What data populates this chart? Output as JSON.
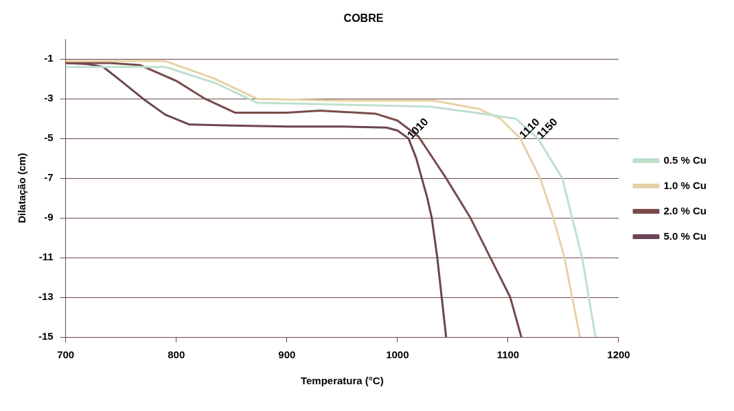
{
  "chart_data": {
    "type": "line",
    "title": "COBRE",
    "xlabel": "Temperatura (°C)",
    "ylabel": "Dilatação (cm)",
    "xlim": [
      700,
      1200
    ],
    "xticks": [
      700,
      800,
      900,
      1000,
      1100,
      1200
    ],
    "ylim": [
      -15,
      0
    ],
    "yticks": [
      -1,
      -3,
      -5,
      -7,
      -9,
      -11,
      -13,
      -15
    ],
    "grid": "y",
    "legend": "right",
    "marker": "none",
    "line_style": "solid",
    "series": [
      {
        "name": "0.5 % Cu",
        "color": "#bfe0cc",
        "x": [
          700,
          790,
          835,
          873,
          950,
          1030,
          1070,
          1107,
          1127,
          1149,
          1158,
          1167,
          1173,
          1179
        ],
        "values": [
          -1.4,
          -1.4,
          -2.2,
          -3.2,
          -3.3,
          -3.4,
          -3.7,
          -4,
          -5,
          -7,
          -9,
          -11,
          -13,
          -15
        ]
      },
      {
        "name": "1.0 % Cu",
        "color": "#e6d2a6",
        "x": [
          700,
          790,
          835,
          873,
          950,
          1033,
          1073,
          1093,
          1111,
          1129,
          1141,
          1151,
          1158,
          1165
        ],
        "values": [
          -1.1,
          -1.1,
          -2,
          -3,
          -3.1,
          -3.1,
          -3.5,
          -4,
          -5,
          -7,
          -9,
          -11,
          -13,
          -15
        ]
      },
      {
        "name": "2.0 % Cu",
        "color": "#7a4a4a",
        "x": [
          700,
          740,
          767,
          800,
          826,
          853,
          900,
          930,
          980,
          1000,
          1019,
          1044,
          1066,
          1084,
          1102,
          1112
        ],
        "values": [
          -1.2,
          -1.2,
          -1.3,
          -2.1,
          -3,
          -3.7,
          -3.7,
          -3.6,
          -3.75,
          -4.1,
          -4.9,
          -7,
          -9,
          -11,
          -13,
          -15
        ]
      },
      {
        "name": "5.0 % Cu",
        "color": "#6b4458",
        "x": [
          700,
          720,
          734,
          750,
          770,
          790,
          812,
          850,
          900,
          950,
          990,
          1000,
          1010,
          1017,
          1022,
          1027,
          1031,
          1036,
          1040,
          1044
        ],
        "values": [
          -1.2,
          -1.25,
          -1.4,
          -2.1,
          -3,
          -3.8,
          -4.3,
          -4.35,
          -4.4,
          -4.4,
          -4.45,
          -4.6,
          -5,
          -6,
          -7,
          -8,
          -9,
          -11,
          -13,
          -15
        ]
      }
    ],
    "annotations": [
      {
        "text": "1010",
        "x": 1010,
        "y": -5
      },
      {
        "text": "1110",
        "x": 1111,
        "y": -5
      },
      {
        "text": "1150",
        "x": 1127,
        "y": -5
      }
    ]
  }
}
